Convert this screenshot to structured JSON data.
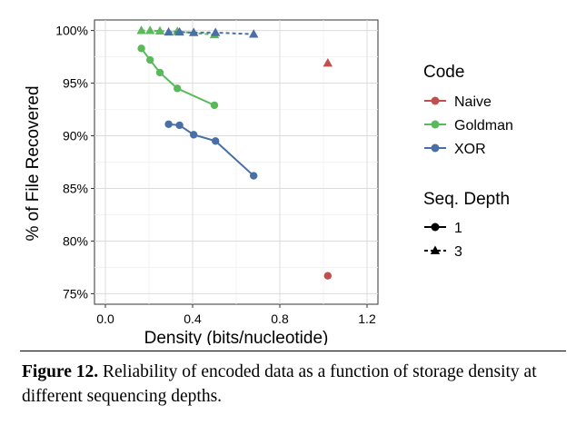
{
  "chart_data": {
    "type": "scatter",
    "xlabel": "Density (bits/nucleotide)",
    "ylabel": "% of File Recovered",
    "xlim": [
      -0.05,
      1.25
    ],
    "ylim": [
      74,
      101
    ],
    "x_ticks": [
      0.0,
      0.4,
      0.8,
      1.2
    ],
    "x_tick_labels": [
      "0.0",
      "0.4",
      "0.8",
      "1.2"
    ],
    "y_ticks": [
      75,
      80,
      85,
      90,
      95,
      100
    ],
    "y_tick_labels": [
      "75%",
      "80%",
      "85%",
      "90%",
      "95%",
      "100%"
    ],
    "grid": true,
    "legend_position": "right",
    "legend_code_title": "Code",
    "legend_depth_title": "Seq. Depth",
    "series": [
      {
        "name": "Naive",
        "color": "#c0504d",
        "depth": "1",
        "points": [
          [
            1.02,
            76.7
          ]
        ]
      },
      {
        "name": "Naive",
        "color": "#c0504d",
        "depth": "3",
        "points": [
          [
            1.02,
            96.9
          ]
        ]
      },
      {
        "name": "Goldman",
        "color": "#5ab95a",
        "depth": "1",
        "points": [
          [
            0.165,
            98.3
          ],
          [
            0.205,
            97.2
          ],
          [
            0.25,
            96.0
          ],
          [
            0.33,
            94.5
          ],
          [
            0.5,
            92.9
          ]
        ]
      },
      {
        "name": "Goldman",
        "color": "#5ab95a",
        "depth": "3",
        "points": [
          [
            0.165,
            100.0
          ],
          [
            0.205,
            100.0
          ],
          [
            0.25,
            99.95
          ],
          [
            0.33,
            99.9
          ],
          [
            0.5,
            99.6
          ]
        ]
      },
      {
        "name": "XOR",
        "color": "#4a6fa5",
        "depth": "1",
        "points": [
          [
            0.29,
            91.1
          ],
          [
            0.34,
            91.0
          ],
          [
            0.405,
            90.1
          ],
          [
            0.505,
            89.5
          ],
          [
            0.68,
            86.2
          ]
        ]
      },
      {
        "name": "XOR",
        "color": "#4a6fa5",
        "depth": "3",
        "points": [
          [
            0.29,
            99.85
          ],
          [
            0.34,
            99.85
          ],
          [
            0.405,
            99.8
          ],
          [
            0.505,
            99.8
          ],
          [
            0.68,
            99.65
          ]
        ]
      }
    ],
    "legend_code": [
      {
        "name": "Naive",
        "color": "#c0504d"
      },
      {
        "name": "Goldman",
        "color": "#5ab95a"
      },
      {
        "name": "XOR",
        "color": "#4a6fa5"
      }
    ],
    "legend_depth": [
      {
        "label": "1",
        "shape": "circle",
        "line": "solid"
      },
      {
        "label": "3",
        "shape": "triangle",
        "line": "dashed"
      }
    ]
  },
  "caption": {
    "label": "Figure 12.",
    "text": " Reliability of encoded data as a function of storage density at different sequencing depths."
  }
}
